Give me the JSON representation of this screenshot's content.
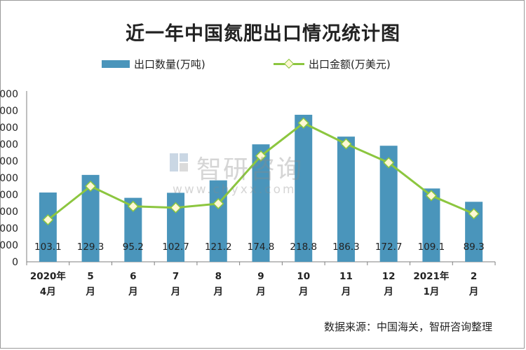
{
  "title": "近一年中国氮肥出口情况统计图",
  "legend": {
    "bar_label": "出口数量(万吨)",
    "line_label": "出口金额(万美元)"
  },
  "source": "数据来源：中国海关，智研咨询整理",
  "watermark": {
    "text": "智研咨询",
    "url": "www.chyxx.com"
  },
  "colors": {
    "bar": "#4a95bb",
    "line": "#8cc63f",
    "marker_fill": "#fff8d4"
  },
  "chart_data": {
    "type": "bar",
    "categories": [
      "2020年\n4月",
      "5\n月",
      "6\n月",
      "7\n月",
      "8\n月",
      "9\n月",
      "10\n月",
      "11\n月",
      "12\n月",
      "2021年\n1月",
      "2\n月"
    ],
    "series": [
      {
        "name": "出口数量(万吨)",
        "type": "bar",
        "values": [
          103.1,
          129.3,
          95.2,
          102.7,
          121.2,
          174.8,
          218.8,
          186.3,
          172.7,
          109.1,
          89.3
        ]
      },
      {
        "name": "出口金额(万美元)",
        "type": "line",
        "values": [
          62.5,
          112.5,
          82.5,
          80.5,
          86.5,
          157.5,
          206.5,
          175.5,
          147.5,
          98.5,
          71.5
        ]
      }
    ],
    "y_ticks": [
      "0",
      "0000",
      "0000",
      "0000",
      "0000",
      "0000",
      "0000",
      "0000",
      "0000",
      "0000",
      "0000"
    ],
    "ylim": [
      0,
      250
    ],
    "grid": false,
    "legend_position": "top"
  }
}
